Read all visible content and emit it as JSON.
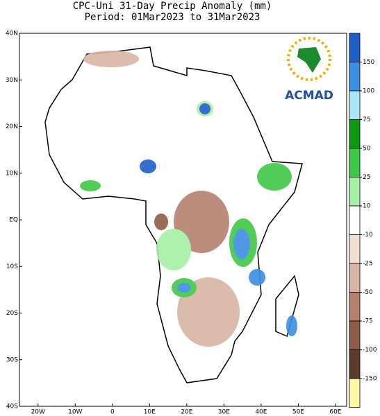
{
  "header": {
    "title": "CPC-Uni 31-Day Precip Anomaly (mm)",
    "subtitle": "Period: 01Mar2023 to 31Mar2023"
  },
  "map": {
    "xlim": [
      -25,
      63
    ],
    "ylim": [
      -40,
      40
    ],
    "xticks": [
      {
        "value": -20,
        "label": "20W"
      },
      {
        "value": -10,
        "label": "10W"
      },
      0,
      {
        "value": 10,
        "label": "10E"
      },
      {
        "value": 20,
        "label": "20E"
      },
      {
        "value": 30,
        "label": "30E"
      },
      {
        "value": 40,
        "label": "40E"
      },
      {
        "value": 50,
        "label": "50E"
      },
      {
        "value": 60,
        "label": "60E"
      }
    ],
    "yticks": [
      {
        "value": 40,
        "label": "40N"
      },
      {
        "value": 30,
        "label": "30N"
      },
      {
        "value": 20,
        "label": "20N"
      },
      {
        "value": 10,
        "label": "10N"
      },
      {
        "value": 0,
        "label": "EQ"
      },
      {
        "value": -10,
        "label": "10S"
      },
      {
        "value": -20,
        "label": "20S"
      },
      {
        "value": -30,
        "label": "30S"
      },
      {
        "value": -40,
        "label": "40S"
      }
    ]
  },
  "colorbar": {
    "levels": [
      150,
      100,
      75,
      50,
      25,
      10,
      -10,
      -25,
      -50,
      -75,
      -100,
      -150
    ],
    "colors": [
      "#1d5fc9",
      "#3c8fe2",
      "#a8e8f4",
      "#0c9a12",
      "#3fc846",
      "#a6f0a4",
      "#ffffff",
      "#f1ddd2",
      "#d8b5a2",
      "#b5806e",
      "#8d5b49",
      "#5e3a2c",
      "#fff7a6"
    ]
  },
  "logo": {
    "text": "ACMAD"
  }
}
